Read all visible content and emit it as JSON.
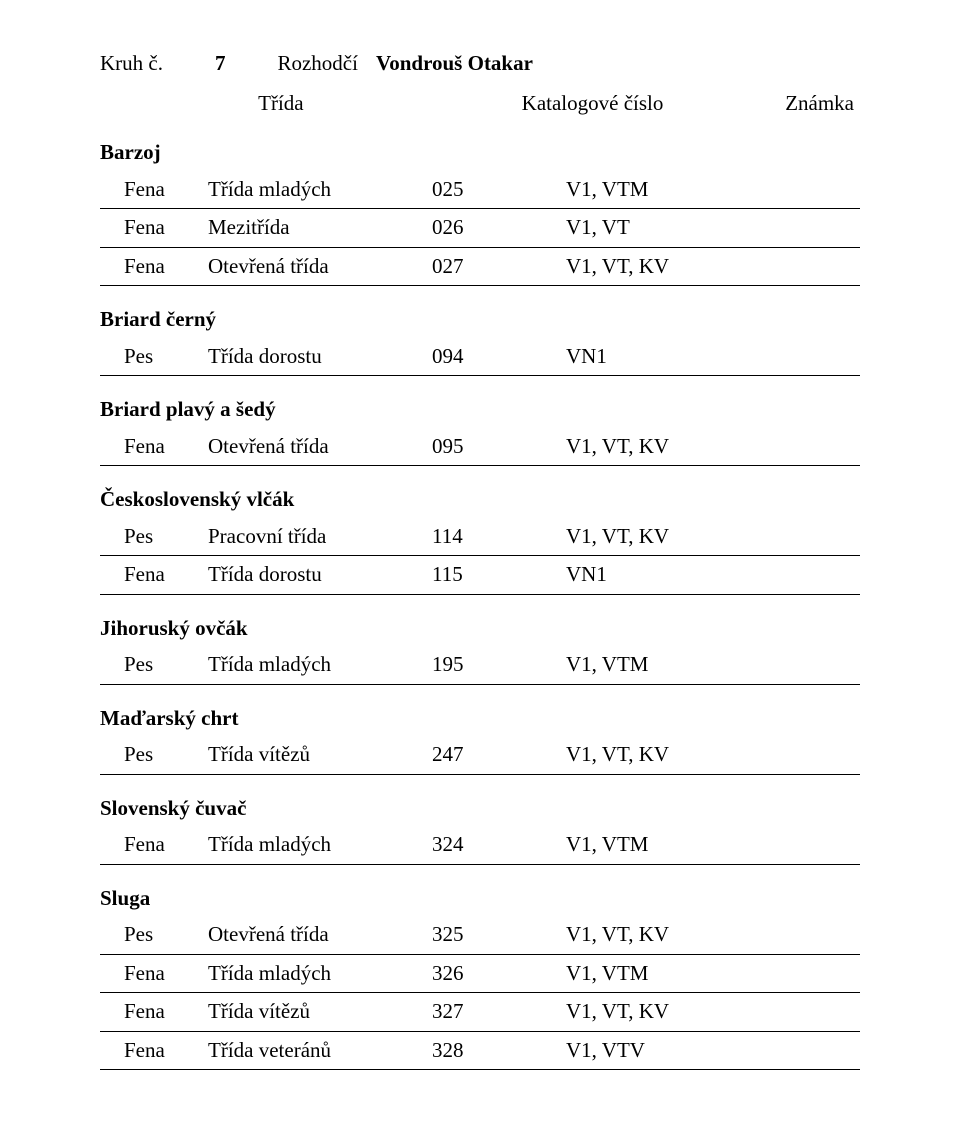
{
  "top": {
    "ring_label": "Kruh č.",
    "ring_number": "7",
    "judge_label": "Rozhodčí",
    "judge_name": "Vondrouš Otakar"
  },
  "header": {
    "c1": "Třída",
    "c2": "Katalogové číslo",
    "c3": "Známka"
  },
  "sections": [
    {
      "breed": "Barzoj",
      "rows": [
        {
          "sex": "Fena",
          "class": "Třída mladých",
          "cat": "025",
          "mark": "V1, VTM"
        },
        {
          "sex": "Fena",
          "class": "Mezitřída",
          "cat": "026",
          "mark": "V1, VT"
        },
        {
          "sex": "Fena",
          "class": "Otevřená třída",
          "cat": "027",
          "mark": "V1, VT, KV"
        }
      ]
    },
    {
      "breed": "Briard černý",
      "rows": [
        {
          "sex": "Pes",
          "class": "Třída dorostu",
          "cat": "094",
          "mark": "VN1"
        }
      ]
    },
    {
      "breed": "Briard plavý a šedý",
      "rows": [
        {
          "sex": "Fena",
          "class": "Otevřená třída",
          "cat": "095",
          "mark": "V1, VT, KV"
        }
      ]
    },
    {
      "breed": "Československý vlčák",
      "rows": [
        {
          "sex": "Pes",
          "class": "Pracovní třída",
          "cat": "114",
          "mark": "V1, VT, KV"
        },
        {
          "sex": "Fena",
          "class": "Třída dorostu",
          "cat": "115",
          "mark": "VN1"
        }
      ]
    },
    {
      "breed": "Jihoruský ovčák",
      "rows": [
        {
          "sex": "Pes",
          "class": "Třída mladých",
          "cat": "195",
          "mark": "V1, VTM"
        }
      ]
    },
    {
      "breed": "Maďarský chrt",
      "rows": [
        {
          "sex": "Pes",
          "class": "Třída vítězů",
          "cat": "247",
          "mark": "V1, VT, KV"
        }
      ]
    },
    {
      "breed": "Slovenský čuvač",
      "rows": [
        {
          "sex": "Fena",
          "class": "Třída mladých",
          "cat": "324",
          "mark": "V1, VTM"
        }
      ]
    },
    {
      "breed": "Sluga",
      "rows": [
        {
          "sex": "Pes",
          "class": "Otevřená třída",
          "cat": "325",
          "mark": "V1, VT, KV"
        },
        {
          "sex": "Fena",
          "class": "Třída mladých",
          "cat": "326",
          "mark": "V1, VTM"
        },
        {
          "sex": "Fena",
          "class": "Třída vítězů",
          "cat": "327",
          "mark": "V1, VT, KV"
        },
        {
          "sex": "Fena",
          "class": "Třída veteránů",
          "cat": "328",
          "mark": "V1, VTV"
        }
      ]
    }
  ]
}
